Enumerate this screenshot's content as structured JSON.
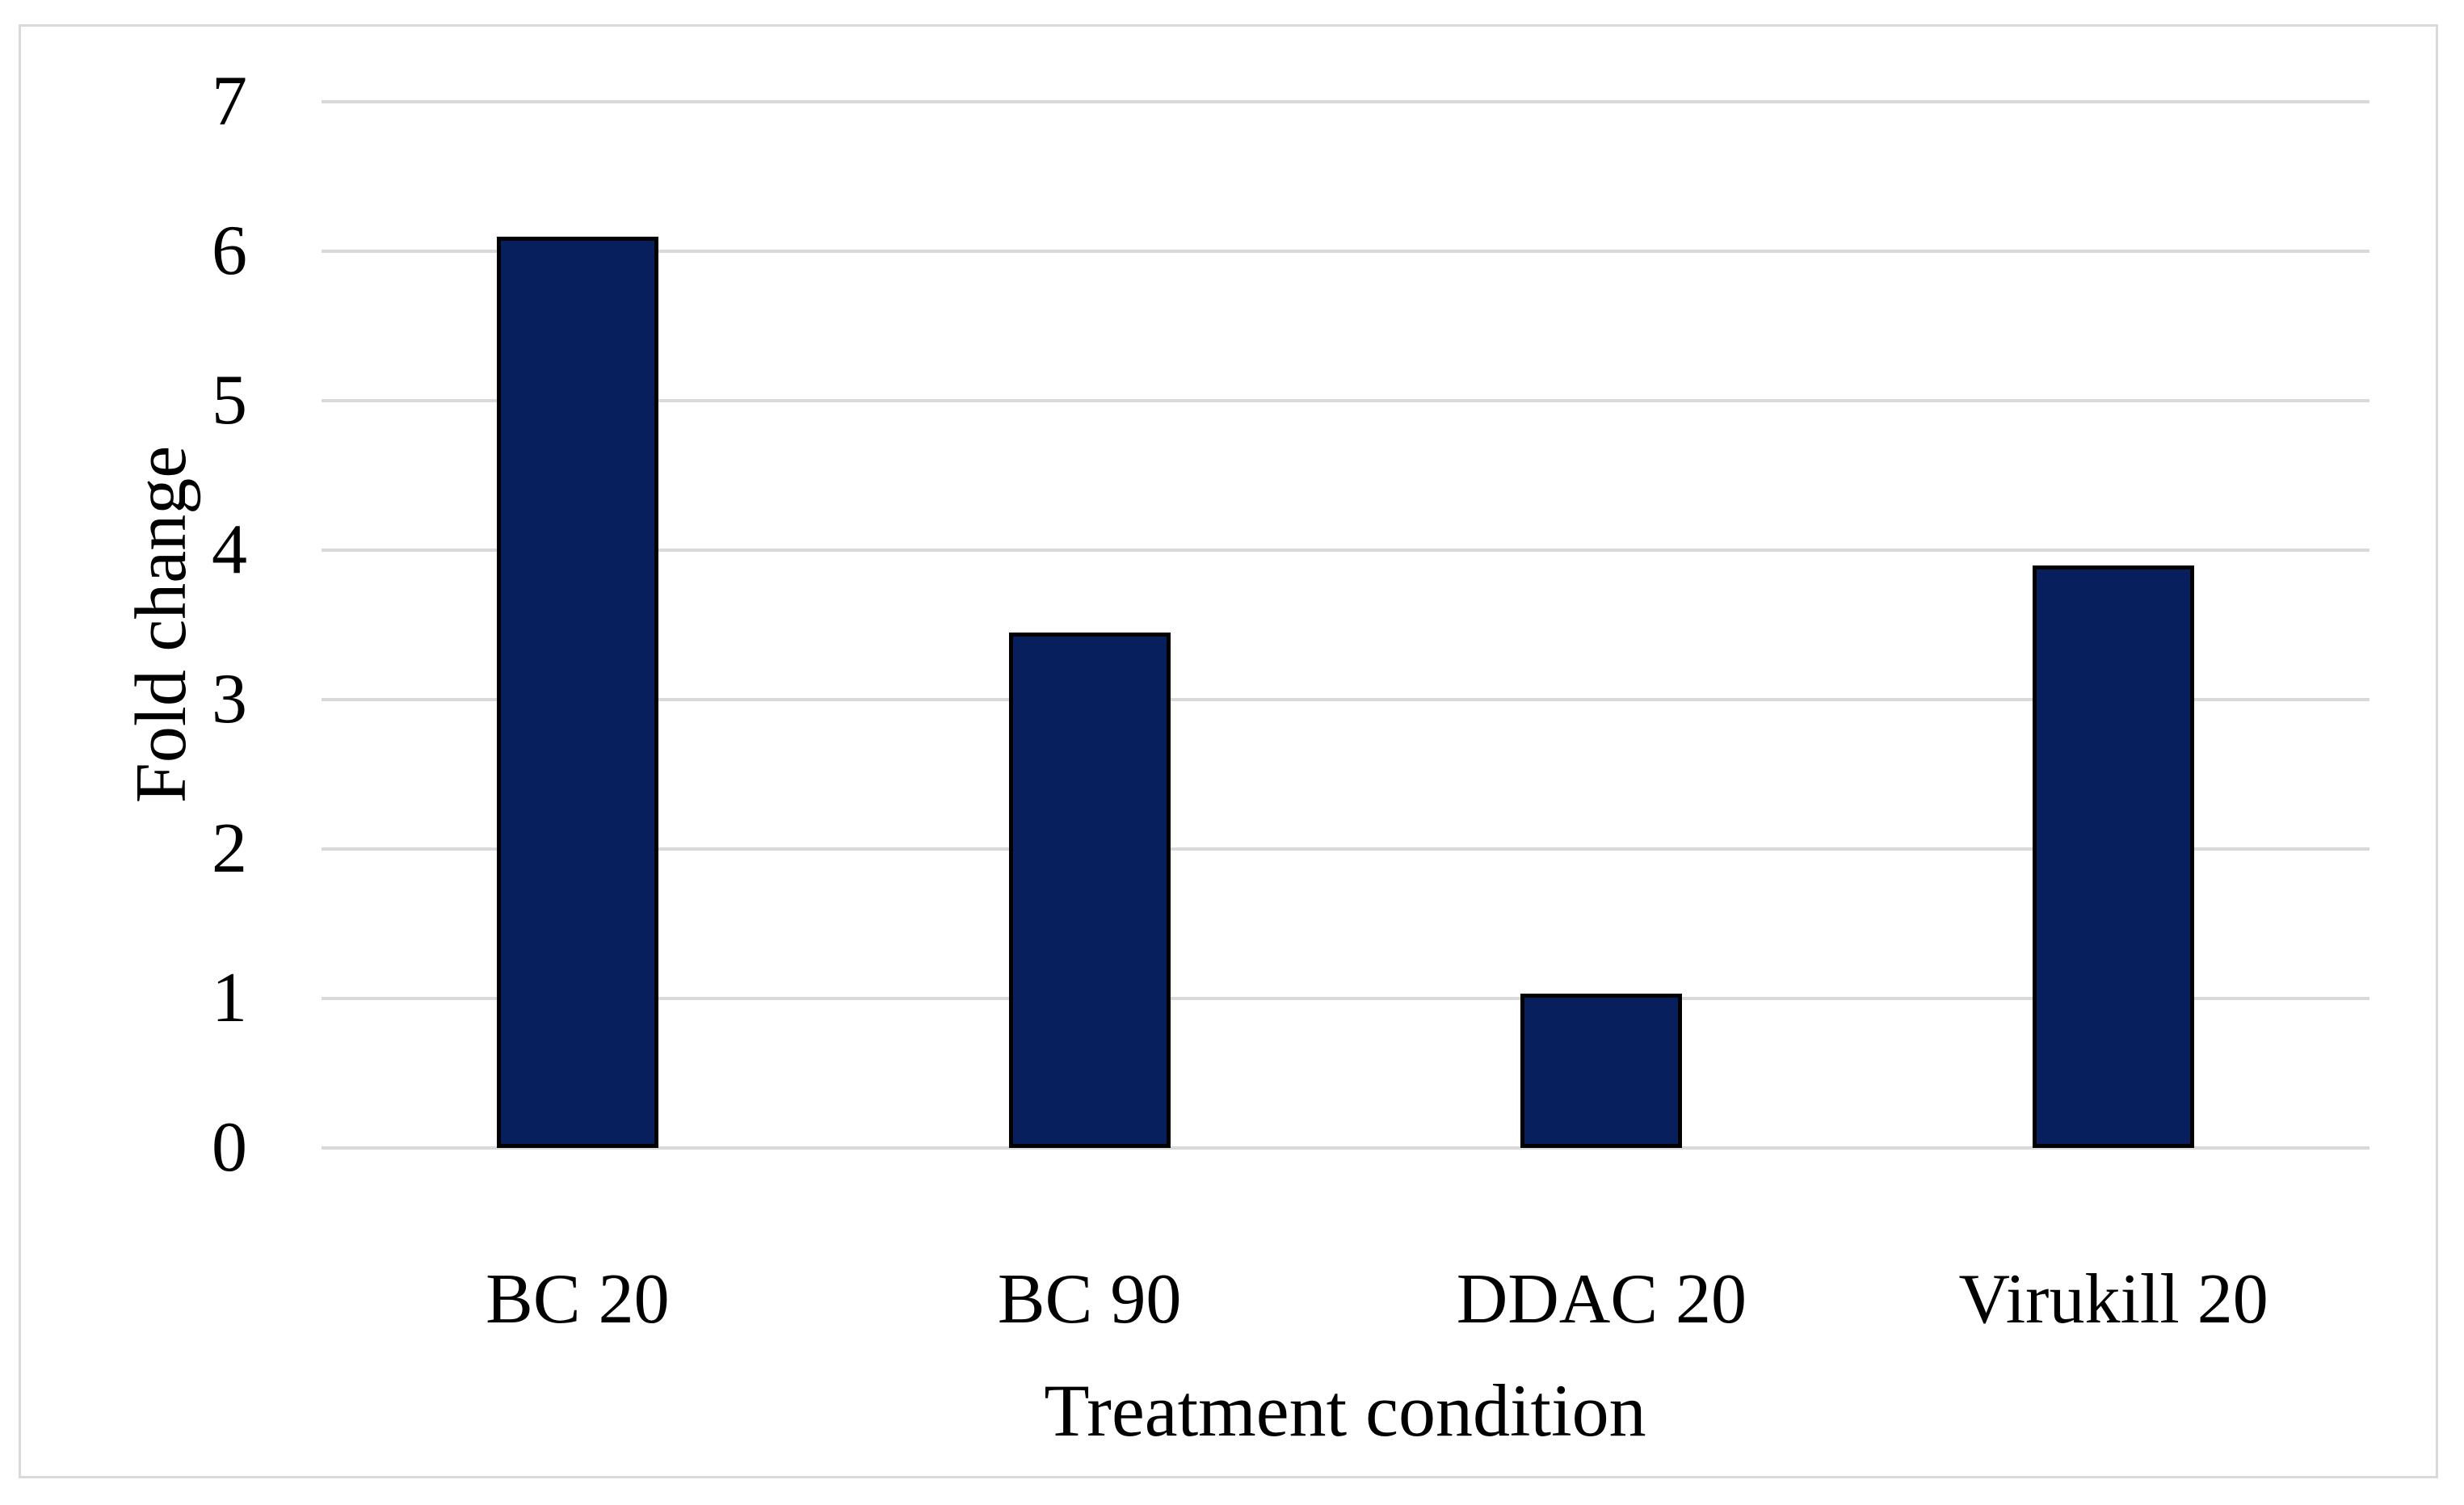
{
  "figure": {
    "kind": "bar-chart-figure",
    "background": "#ffffff"
  },
  "chart_data": {
    "type": "bar",
    "title": "",
    "categories": [
      "BC 20",
      "BC 90",
      "DDAC 20",
      "Virukill 20"
    ],
    "values": [
      6.1,
      3.45,
      1.03,
      3.9
    ],
    "xlabel": "Treatment condition",
    "ylabel": "Fold change",
    "ylim": [
      0,
      7
    ],
    "ytick_step": 1,
    "yticks": [
      0,
      1,
      2,
      3,
      4,
      5,
      6,
      7
    ],
    "grid": "horizontal",
    "legend": "none",
    "colors": {
      "bar_fill": "#081f5e",
      "bar_border": "#000000",
      "gridline": "#d9d9d9",
      "frame_border": "#d9d9d9",
      "text": "#000000",
      "background": "#ffffff"
    }
  }
}
